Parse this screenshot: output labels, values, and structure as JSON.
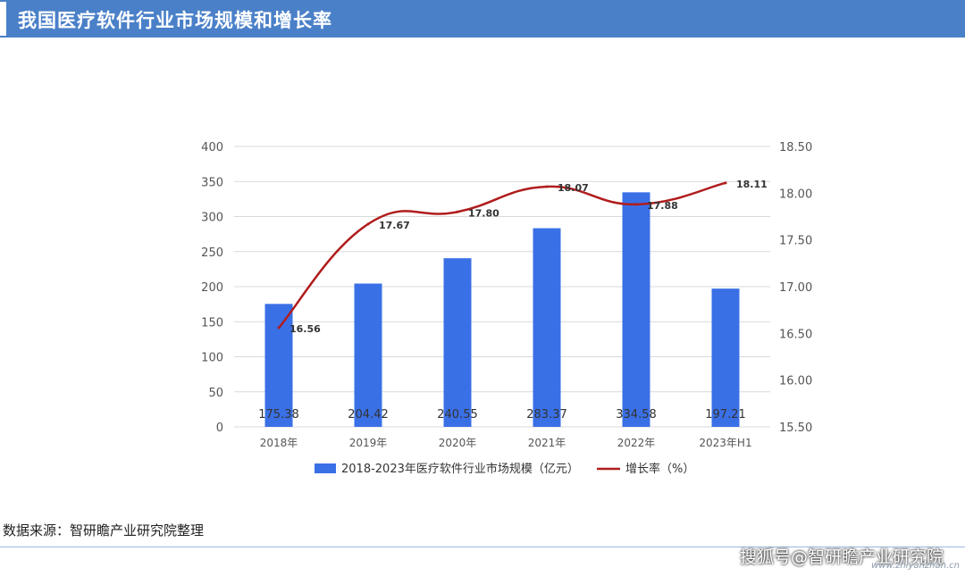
{
  "header": {
    "title": "我国医疗软件行业市场规模和增长率"
  },
  "source_note": "数据来源：智研瞻产业研究院整理",
  "footer": {
    "brand": "搜狐号@智研瞻产业研究院",
    "url": "www.zhiyanzhan.cn"
  },
  "colors": {
    "bar": "#3a70e6",
    "line": "#b01c1c",
    "title_bar": "#4a80c8",
    "grid": "#d9d9d9"
  },
  "chart_data": {
    "type": "bar",
    "categories": [
      "2018年",
      "2019年",
      "2020年",
      "2021年",
      "2022年",
      "2023年H1"
    ],
    "series": [
      {
        "name": "2018-2023年医疗软件行业市场规模（亿元）",
        "type": "bar",
        "axis": "left",
        "values": [
          175.38,
          204.42,
          240.55,
          283.37,
          334.58,
          197.21
        ],
        "labels": [
          "175.38",
          "204.42",
          "240.55",
          "283.37",
          "334.58",
          "197.21"
        ]
      },
      {
        "name": "增长率（%）",
        "type": "line",
        "axis": "right",
        "values": [
          16.56,
          17.67,
          17.8,
          18.07,
          17.88,
          18.11
        ],
        "labels": [
          "16.56",
          "17.67",
          "17.80",
          "18.07",
          "17.88",
          "18.11"
        ]
      }
    ],
    "y_left": {
      "min": 0,
      "max": 400,
      "ticks": [
        "0",
        "50",
        "100",
        "150",
        "200",
        "250",
        "300",
        "350",
        "400"
      ]
    },
    "y_right": {
      "min": 15.5,
      "max": 18.5,
      "ticks": [
        "15.50",
        "16.00",
        "16.50",
        "17.00",
        "17.50",
        "18.00",
        "18.50"
      ]
    },
    "grid": true,
    "legend_position": "bottom"
  }
}
